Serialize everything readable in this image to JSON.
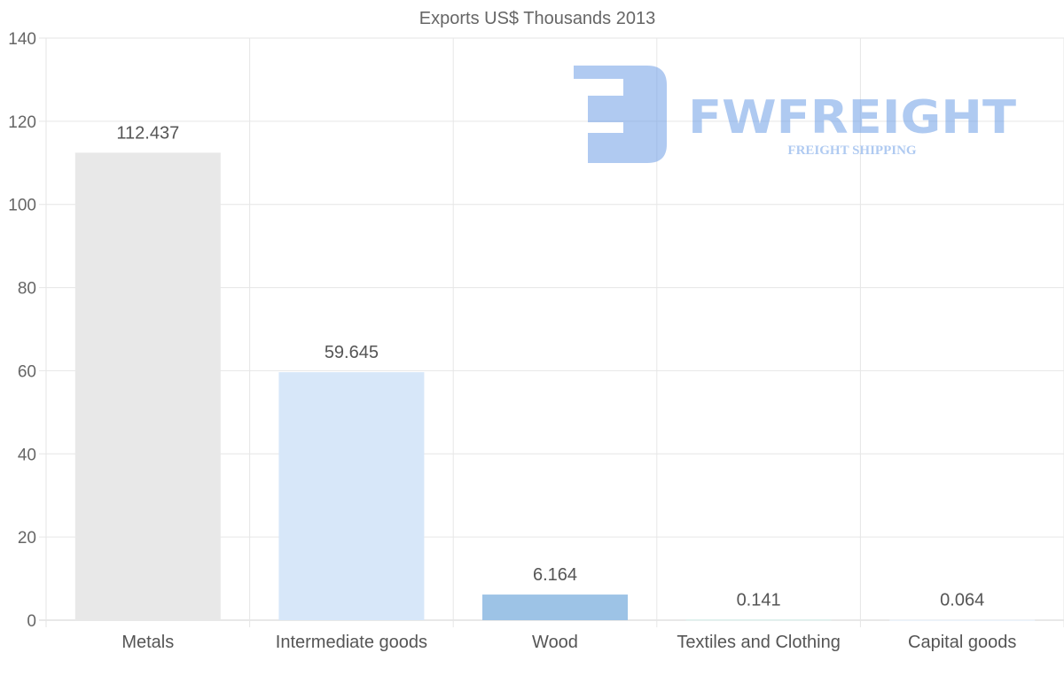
{
  "chart_data": {
    "type": "bar",
    "title": "Exports US$ Thousands 2013",
    "xlabel": "",
    "ylabel": "",
    "categories": [
      "Metals",
      "Intermediate goods",
      "Wood",
      "Textiles and Clothing",
      "Capital goods"
    ],
    "values": [
      112.437,
      59.645,
      6.164,
      0.141,
      0.064
    ],
    "value_labels": [
      "112.437",
      "59.645",
      "6.164",
      "0.141",
      "0.064"
    ],
    "colors": [
      "#e8e8e8",
      "#d7e7f9",
      "#9dc3e6",
      "#cbe9e2",
      "#e3eef9"
    ],
    "ylim": [
      0,
      140
    ],
    "yticks": [
      "0",
      "20",
      "40",
      "60",
      "80",
      "100",
      "120",
      "140"
    ],
    "grid": true,
    "legend": "none"
  },
  "watermark": {
    "brand": "FWFREIGHT",
    "tagline": "FREIGHT SHIPPING"
  }
}
